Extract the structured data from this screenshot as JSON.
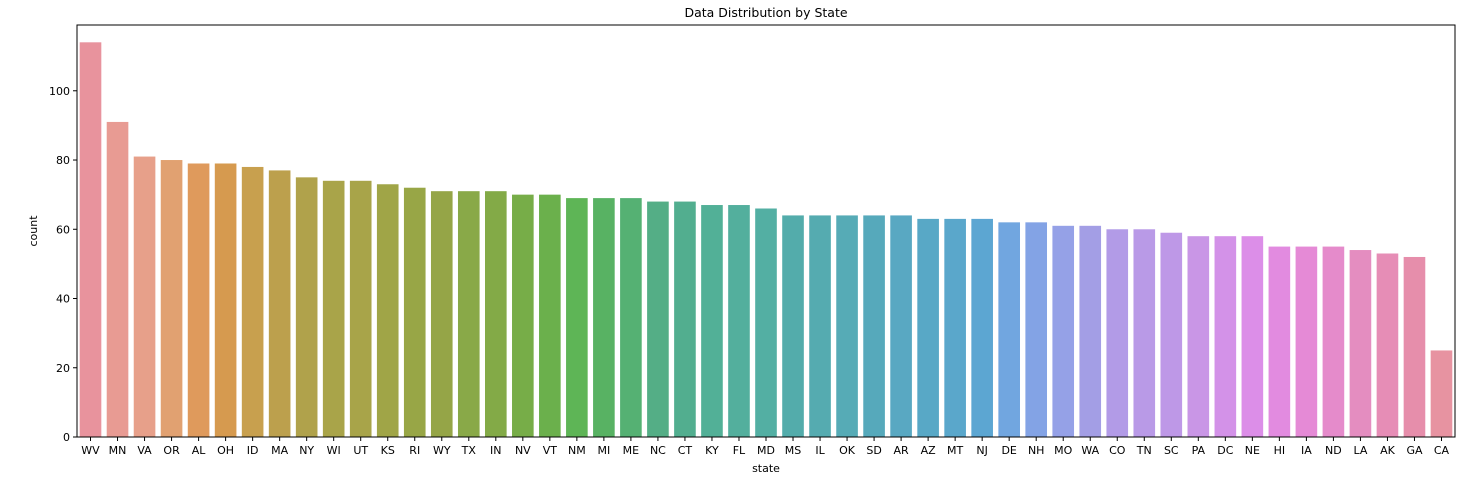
{
  "chart_data": {
    "type": "bar",
    "title": "Data Distribution by State",
    "xlabel": "state",
    "ylabel": "count",
    "ylim": [
      0,
      119
    ],
    "yticks": [
      0,
      20,
      40,
      60,
      80,
      100
    ],
    "grid": false,
    "legend": "none",
    "categories": [
      "WV",
      "MN",
      "VA",
      "OR",
      "AL",
      "OH",
      "ID",
      "MA",
      "NY",
      "WI",
      "UT",
      "KS",
      "RI",
      "WY",
      "TX",
      "IN",
      "NV",
      "VT",
      "NM",
      "MI",
      "ME",
      "NC",
      "CT",
      "KY",
      "FL",
      "MD",
      "MS",
      "IL",
      "OK",
      "SD",
      "AR",
      "AZ",
      "MT",
      "NJ",
      "DE",
      "NH",
      "MO",
      "WA",
      "CO",
      "TN",
      "SC",
      "PA",
      "DC",
      "NE",
      "HI",
      "IA",
      "ND",
      "LA",
      "AK",
      "GA",
      "CA"
    ],
    "values": [
      114,
      91,
      81,
      80,
      79,
      79,
      78,
      77,
      75,
      74,
      74,
      73,
      72,
      71,
      71,
      71,
      70,
      70,
      69,
      69,
      69,
      68,
      68,
      67,
      67,
      66,
      64,
      64,
      64,
      64,
      64,
      63,
      63,
      63,
      62,
      62,
      61,
      61,
      60,
      60,
      59,
      58,
      58,
      58,
      55,
      55,
      55,
      54,
      53,
      52,
      25
    ],
    "colors": [
      "#e8939d",
      "#e89b93",
      "#e7a08a",
      "#e1a171",
      "#df9a5c",
      "#d69a4f",
      "#c8a04e",
      "#bca04d",
      "#b0a24b",
      "#a9a449",
      "#a8a449",
      "#a0a547",
      "#98a646",
      "#95a547",
      "#89a948",
      "#83aa47",
      "#77ad48",
      "#6bb04c",
      "#5eb556",
      "#58b263",
      "#55b173",
      "#54ae86",
      "#52ae8f",
      "#52b097",
      "#53af9d",
      "#53afa3",
      "#53acab",
      "#55abb0",
      "#56abb6",
      "#56a9bb",
      "#59a8c2",
      "#58a8c6",
      "#5aa7cb",
      "#5ca6d2",
      "#71a6e0",
      "#83a3e5",
      "#95a1e7",
      "#a39ee5",
      "#b29be7",
      "#b99ae7",
      "#be98e7",
      "#c996e6",
      "#d392e8",
      "#dc8ee8",
      "#e28be0",
      "#e58ad6",
      "#e58bcb",
      "#e48dc0",
      "#e68db6",
      "#e68eab",
      "#e793a1"
    ]
  }
}
